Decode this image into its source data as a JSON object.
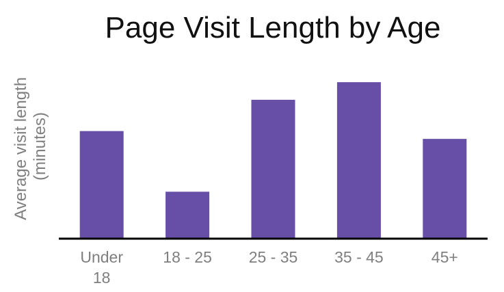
{
  "chart_data": {
    "type": "bar",
    "title": "Page Visit Length by Age",
    "xlabel": "",
    "ylabel": "Average visit length (minutes)",
    "ylabel_lines": [
      "Average visit length",
      "(minutes)"
    ],
    "categories": [
      "Under 18",
      "18 - 25",
      "25 - 35",
      "35 - 45",
      "45+"
    ],
    "category_lines": [
      [
        "Under",
        "18"
      ],
      [
        "18 - 25"
      ],
      [
        "25 - 35"
      ],
      [
        "35 - 45"
      ],
      [
        "45+"
      ]
    ],
    "values": [
      5.5,
      2.4,
      7.1,
      8.0,
      5.1
    ],
    "ylim": [
      0,
      8.6
    ],
    "grid": false,
    "legend": "none",
    "bar_color": "#674ea7",
    "axis_color": "#000000",
    "label_color": "#7f7f7f",
    "title_color": "#111111"
  }
}
